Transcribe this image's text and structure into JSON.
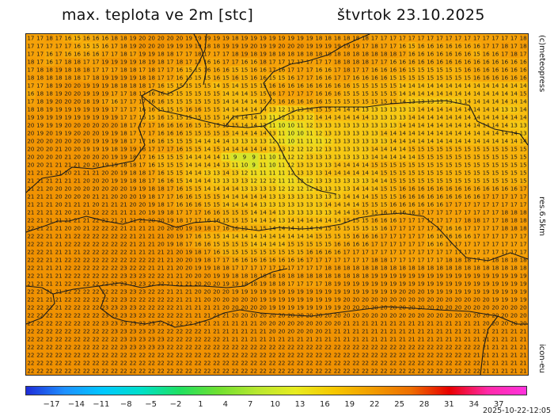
{
  "header": {
    "title": "max. teplota ve 2m [stc]",
    "date": "štvrtok 23.10.2025"
  },
  "side_labels": {
    "credit": "(c)meteopress",
    "resolution": "res.6.5km",
    "model": "icon-eu"
  },
  "colorbar": {
    "ticks": [
      "−17",
      "−14",
      "−11",
      "−8",
      "−5",
      "−2",
      "1",
      "4",
      "7",
      "10",
      "13",
      "16",
      "19",
      "22",
      "25",
      "28",
      "31",
      "34",
      "37"
    ],
    "gradient": [
      "#1e2cd8",
      "#1e90ff",
      "#00c8ff",
      "#00e0c8",
      "#20e060",
      "#70e030",
      "#b8e830",
      "#e8ec20",
      "#f6c800",
      "#f29d00",
      "#ee6e00",
      "#e80000",
      "#ff2aa8",
      "#ff33dd"
    ]
  },
  "timestamp": "2025-10-22-12:05",
  "map": {
    "colors": {
      "t8": "#c8e632",
      "t9": "#d6e42a",
      "t10": "#e3e124",
      "t11": "#eedb1e",
      "t12": "#f3d31a",
      "t13": "#f6c814",
      "t14": "#f7bd10",
      "t15": "#f7b20c",
      "t16": "#f6a90a",
      "t17": "#f5a108",
      "t18": "#f49c06",
      "t19": "#f39804",
      "t20": "#f29503",
      "t21": "#f19302",
      "t22": "#f09101",
      "t23": "#ef8f00",
      "border": "#1a1a1a"
    },
    "grid": [
      "17 17 18 17 16 15 16 16 16 18 18 19 20 20 20 20 20 19 19 19 19 19 18 19 19 19 19 19 19 19 19 18 18 18 18 18 18 17 17 17 17 17 17 17 17 17 17 17 17 17 17 17 17 18",
      "17 17 17 17 17 16 15 15 16 17 18 19 20 20 20 19 19 19 19 18 18 19 19 19 20 19 19 20 20 20 19 19 19 19 19 19 17 18 17 17 16 15 16 16 16 16 16 16 16 17 17 18 17 18",
      "17 17 16 17 16 16 16 16 17 17 18 17 19 19 18 18 17 17 18 17 17 17 18 19 18 19 18 18 18 18 18 18 18 18 18 18 18 18 18 18 17 16 16 16 16 16 16 16 15 16 16 17 18 17",
      "18 17 16 17 18 18 17 17 19 19 19 19 18 19 18 17 18 17 17 16 16 17 17 16 16 18 17 17 17 17 17 17 17 18 18 18 18 17 17 16 16 16 16 16 16 16 16 16 16 16 16 16 16 16",
      "17 18 18 19 18 18 18 17 17 17 18 18 17 18 17 17 16 15 15 16 16 16 15 15 16 16 17 16 17 17 17 16 16 17 18 17 17 16 16 16 16 15 15 15 15 15 15 16 16 16 16 16 16 16",
      "18 18 18 18 18 18 17 18 19 19 19 19 18 18 17 17 16 15 15 15 16 15 16 15 16 16 15 15 16 17 17 16 16 17 17 16 16 16 16 15 15 15 15 15 15 15 15 15 16 16 16 16 16 16",
      "17 17 18 19 20 20 19 19 19 18 18 18 18 17 16 15 15 15 15 15 14 15 14 15 15 15 16 16 16 16 16 16 16 16 16 15 15 15 15 15 14 14 14 14 14 14 14 14 14 14 14 14 14 14",
      "16 18 18 19 20 20 19 19 19 17 17 18 17 16 16 15 15 15 15 15 15 14 14 14 15 15 16 17 17 17 17 16 16 16 15 15 15 15 15 15 14 14 14 14 14 14 14 14 14 14 14 14 14 15",
      "17 18 19 20 20 20 18 19 17 16 17 17 17 16 16 15 15 15 15 15 15 14 14 14 14 15 15 16 16 16 16 16 15 15 15 15 15 15 15 15 14 13 13 13 13 13 13 14 14 14 14 14 14 14",
      "18 18 19 19 19 19 19 19 19 17 17 17 16 16 15 15 15 16 16 15 15 14 14 14 14 14 13 12 13 13 14 15 15 14 14 14 13 13 13 13 13 13 14 14 14 14 14 14 14 14 14 13 13 14",
      "19 19 19 19 19 19 19 19 19 19 17 17 16 15 16 15 15 15 15 15 15 14 14 14 14 13 11 12 13 13 12 14 14 14 14 14 14 13 13 13 13 14 14 14 14 14 14 14 14 14 14 14 14 14",
      "20 19 19 19 20 20 20 20 20 20 18 17 17 17 16 16 16 16 15 15 15 15 15 14 14 13 11 10 10 11 12 13 13 13 13 13 13 13 13 13 14 14 14 14 14 14 14 14 14 14 14 14 13 13",
      "20 19 20 19 19 20 20 20 19 19 18 17 17 17 16 16 16 15 15 15 15 15 14 14 14 14 13 11 10 10 11 12 13 13 13 13 13 13 14 14 14 14 14 14 14 14 14 14 14 14 14 14 14 13",
      "20 20 20 20 20 20 20 19 19 19 18 17 17 16 16 15 15 15 14 14 14 14 13 13 13 13 12 11 10 11 11 11 12 13 13 13 13 13 13 14 14 14 14 14 14 14 14 14 14 14 14 14 14 14",
      "20 20 20 21 20 20 19 19 19 18 19 19 18 17 17 17 16 15 15 14 15 14 14 14 14 14 13 13 12 12 12 12 13 13 13 13 13 14 14 14 14 15 15 15 15 15 15 15 15 15 15 15 15 15",
      "20 20 20 20 21 20 20 20 20 19 19 18 17 16 15 15 15 14 14 14 14 11 9 9 9 11 10 11 12 12 13 13 13 13 13 13 13 14 14 14 14 14 15 15 15 15 15 15 15 15 15 15 15 15",
      "20 20 21 21 21 21 20 20 19 19 18 18 17 16 15 15 15 14 14 14 14 13 11 10 9 11 10 11 12 13 13 13 13 14 14 14 14 15 15 15 15 15 15 15 15 15 15 15 15 15 15 15 15 15",
      "21 21 21 21 20 21 21 21 20 20 19 18 18 17 16 15 15 14 14 13 13 14 13 12 11 11 11 11 12 13 13 13 14 14 14 14 14 14 15 15 15 15 15 15 15 15 15 15 15 15 15 15 15 15",
      "21 21 21 21 21 21 20 20 20 19 19 18 18 17 16 16 15 14 14 14 13 13 13 13 12 12 12 11 11 12 12 13 13 13 13 13 13 14 14 15 15 15 15 15 15 15 15 15 15 15 15 15 15 15",
      "21 21 20 20 20 20 20 20 20 20 20 19 19 18 18 17 16 15 15 14 14 14 14 13 13 13 13 12 12 12 12 13 13 13 13 14 14 14 15 15 16 16 16 16 16 16 16 16 16 16 16 16 16 17",
      "21 21 21 20 20 20 20 21 21 20 20 20 19 18 17 17 16 16 15 15 15 14 14 14 14 14 13 13 13 13 13 13 13 13 14 14 14 15 15 15 16 16 16 16 16 16 16 16 16 17 17 17 17 17",
      "21 21 21 20 21 21 21 20 21 21 21 20 20 19 18 17 16 16 16 15 15 14 14 14 14 13 13 13 13 13 13 13 14 14 14 14 15 15 15 16 16 16 16 16 16 17 17 17 17 17 17 17 17 17",
      "21 21 21 21 20 21 21 22 22 21 21 21 20 19 19 18 17 17 17 16 16 15 15 15 14 14 14 13 13 13 13 13 13 14 14 15 15 15 16 16 16 16 17 17 17 17 17 17 17 17 17 18 18 18",
      "22 21 21 21 21 21 21 22 22 21 21 21 21 20 20 19 18 17 17 16 16 15 15 15 14 14 14 13 14 14 14 14 14 14 15 15 15 16 16 16 17 17 17 17 17 17 17 18 18 17 17 18 18 18",
      "22 21 21 21 20 20 21 22 22 22 21 21 21 21 20 20 20 19 19 18 17 16 16 15 15 15 14 14 14 14 14 14 15 15 15 15 15 15 16 17 17 17 17 17 17 16 16 17 17 17 17 18 18 18",
      "22 22 21 21 21 22 22 22 22 22 22 21 21 21 21 20 19 17 16 15 15 14 14 14 14 14 14 14 14 14 14 15 15 15 15 16 16 16 17 17 17 17 17 16 16 16 16 16 17 17 17 17 17 17",
      "22 22 21 21 22 22 22 22 22 22 22 21 21 21 20 19 18 17 16 16 15 15 15 15 14 14 14 14 15 15 15 15 15 16 16 16 16 17 17 17 17 17 17 16 16 17 17 17 17 17 17 17 17 17",
      "22 22 21 21 21 21 22 22 22 22 22 21 21 21 21 21 20 19 18 17 16 15 15 15 15 15 15 15 15 15 16 16 16 16 17 17 17 17 17 17 17 17 17 17 17 17 17 17 17 17 17 17 17 17",
      "22 22 21 21 22 22 22 22 22 22 22 22 22 22 21 21 20 20 19 18 17 17 16 16 16 16 16 16 16 16 17 17 17 17 17 17 17 18 18 17 17 17 17 17 17 18 18 18 17 17 18 18 18 18",
      "22 21 21 21 22 22 22 22 22 22 23 22 22 21 21 21 20 20 19 19 18 18 17 17 17 17 17 17 17 17 17 17 18 18 18 18 18 18 18 18 18 18 18 18 18 18 18 18 18 18 18 18 18 18",
      "22 21 21 21 22 22 22 22 22 22 23 23 23 22 22 21 21 20 20 20 19 19 18 18 18 18 18 18 18 18 18 18 18 18 18 18 18 19 19 19 19 19 19 19 19 19 19 19 19 19 19 19 19 19",
      "21 21 21 21 22 22 22 22 22 22 23 23 23 22 22 21 21 21 20 20 20 19 19 18 18 19 18 18 17 17 17 17 18 19 19 19 19 19 19 19 19 19 19 19 19 19 19 19 19 19 19 19 19 19",
      "22 21 21 21 22 22 22 22 22 22 23 23 23 22 22 21 21 21 20 20 20 20 19 19 19 19 19 19 19 19 19 19 19 19 19 19 19 19 19 19 20 20 20 19 19 19 19 19 19 19 19 19 19 19",
      "22 21 21 21 22 22 22 22 22 22 23 22 22 22 22 22 21 21 21 20 20 20 20 20 20 19 19 19 19 19 19 19 19 19 20 20 20 20 20 20 20 20 20 20 20 20 20 20 20 20 19 19 19 19",
      "22 22 22 21 22 22 22 22 23 23 23 23 22 22 22 22 21 21 21 21 21 20 20 20 20 20 19 19 19 19 19 19 19 19 20 20 20 20 20 20 20 20 20 20 20 20 20 20 20 20 20 20 20 20",
      "22 22 22 22 22 22 22 22 23 23 23 23 23 22 22 22 22 21 21 21 21 21 20 20 20 20 20 20 20 20 20 20 20 20 20 20 20 20 20 20 20 20 20 20 20 20 20 20 20 20 20 20 20 20",
      "22 22 22 22 22 22 22 22 23 23 23 23 23 23 22 22 22 22 21 21 21 21 21 21 21 20 20 20 20 20 20 20 20 20 21 21 21 21 21 21 21 21 21 21 21 21 21 21 21 20 20 20 20 20",
      "22 22 22 22 22 22 22 22 22 23 23 23 23 23 22 22 22 22 22 21 21 21 21 21 21 21 20 20 20 20 20 20 21 21 21 21 21 21 21 21 21 21 21 21 21 21 21 21 21 21 21 21 21 21",
      "22 22 22 22 22 22 22 22 22 22 23 23 23 23 23 22 22 22 22 22 22 21 21 21 21 21 21 21 21 21 21 21 21 21 21 21 21 21 21 21 21 21 21 21 21 21 21 21 21 21 21 21 21 21",
      "22 22 22 22 22 22 22 22 22 22 23 23 23 23 23 22 22 22 22 22 22 22 22 22 22 22 22 22 22 22 22 22 22 22 22 22 22 22 22 22 22 22 22 22 22 22 22 22 22 21 21 21 21 21",
      "22 22 22 22 22 22 22 22 22 22 22 22 22 22 22 22 22 22 22 22 22 22 22 22 22 22 22 22 22 22 22 22 22 22 22 22 22 22 22 22 22 22 22 22 22 22 22 22 21 21 21 21 21 21",
      "22 22 22 22 22 22 22 22 22 22 22 22 22 22 22 22 22 22 22 22 22 22 22 22 22 22 22 22 22 22 22 22 22 22 22 22 22 22 22 22 22 22 22 22 22 22 22 22 22 21 21 21 21 21",
      "22 22 22 22 22 22 22 22 22 22 22 22 22 22 22 22 22 22 22 22 22 22 22 22 22 22 22 22 22 22 22 22 22 22 22 22 22 22 22 22 22 22 22 22 22 22 22 22 22 21 21 21 21 21"
    ]
  }
}
